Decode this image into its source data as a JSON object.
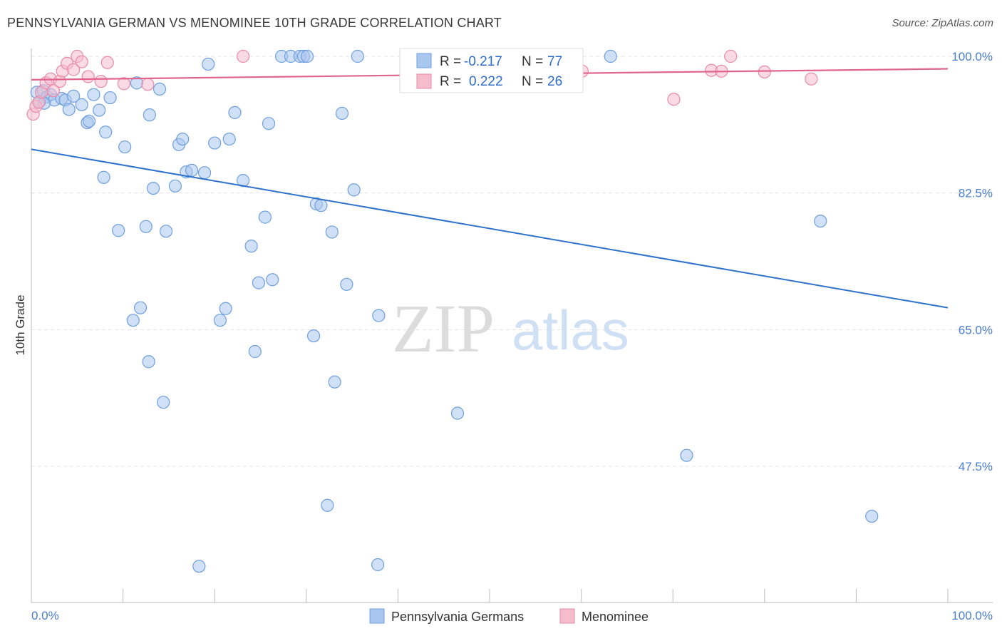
{
  "title": "PENNSYLVANIA GERMAN VS MENOMINEE 10TH GRADE CORRELATION CHART",
  "source": "Source: ZipAtlas.com",
  "watermark": {
    "part1": "ZIP",
    "part2": "atlas"
  },
  "colors": {
    "blue_fill": "#a9c7ee",
    "blue_stroke": "#6f9fdc",
    "blue_line": "#2f72cc",
    "pink_fill": "#f5bccd",
    "pink_stroke": "#e98aa8",
    "pink_line": "#e0668f",
    "grid": "#e3e3e3",
    "axis_label": "#4a7fd0"
  },
  "legend_box": {
    "rows": [
      {
        "r_label": "R =",
        "r_value": "-0.217",
        "n_label": "N =",
        "n_value": "77"
      },
      {
        "r_label": "R =",
        "r_value": "0.222",
        "n_label": "N =",
        "n_value": "26"
      }
    ]
  },
  "bottom_legend": [
    "Pennsylvania Germans",
    "Menominee"
  ],
  "chart_data": {
    "type": "scatter",
    "xlabel": "",
    "ylabel": "10th Grade",
    "xlim": [
      0,
      100
    ],
    "ylim": [
      35,
      101
    ],
    "x_tick_labels": [
      "0.0%",
      "100.0%"
    ],
    "y_tick_labels": [
      "100.0%",
      "82.5%",
      "65.0%",
      "47.5%"
    ],
    "y_ticks": [
      100,
      82.5,
      65,
      47.5
    ],
    "grid": "horizontal dashed",
    "series": [
      {
        "name": "Pennsylvania Germans",
        "points": [
          [
            0.6,
            95.4
          ],
          [
            0.9,
            94.2
          ],
          [
            1.3,
            95.6
          ],
          [
            1.7,
            94.8
          ],
          [
            2.1,
            95.1
          ],
          [
            2.5,
            94.4
          ],
          [
            3.3,
            94.6
          ],
          [
            3.7,
            94.4
          ],
          [
            4.1,
            93.2
          ],
          [
            4.6,
            94.9
          ],
          [
            5.5,
            93.8
          ],
          [
            6.1,
            91.5
          ],
          [
            6.3,
            91.7
          ],
          [
            6.8,
            95.1
          ],
          [
            7.4,
            93.1
          ],
          [
            7.9,
            84.5
          ],
          [
            8.1,
            90.3
          ],
          [
            8.6,
            94.7
          ],
          [
            9.5,
            77.7
          ],
          [
            10.2,
            88.4
          ],
          [
            11.1,
            66.2
          ],
          [
            11.5,
            96.6
          ],
          [
            11.9,
            67.8
          ],
          [
            12.5,
            78.2
          ],
          [
            12.8,
            60.9
          ],
          [
            12.9,
            92.5
          ],
          [
            13.3,
            83.1
          ],
          [
            14.0,
            95.8
          ],
          [
            14.4,
            55.7
          ],
          [
            14.7,
            77.6
          ],
          [
            15.7,
            83.4
          ],
          [
            16.1,
            88.7
          ],
          [
            16.5,
            89.4
          ],
          [
            16.9,
            85.2
          ],
          [
            17.5,
            85.4
          ],
          [
            18.3,
            34.7
          ],
          [
            18.9,
            85.1
          ],
          [
            19.3,
            99.0
          ],
          [
            20.0,
            88.9
          ],
          [
            20.6,
            66.2
          ],
          [
            21.2,
            67.7
          ],
          [
            21.6,
            89.4
          ],
          [
            22.2,
            92.8
          ],
          [
            23.1,
            84.1
          ],
          [
            24.0,
            75.7
          ],
          [
            24.4,
            62.2
          ],
          [
            24.8,
            71.0
          ],
          [
            25.5,
            79.4
          ],
          [
            25.9,
            91.4
          ],
          [
            26.3,
            71.4
          ],
          [
            27.3,
            100.0
          ],
          [
            28.3,
            100.0
          ],
          [
            29.3,
            100.0
          ],
          [
            29.7,
            100.0
          ],
          [
            30.1,
            100.0
          ],
          [
            30.8,
            64.2
          ],
          [
            31.1,
            81.1
          ],
          [
            31.6,
            80.9
          ],
          [
            32.3,
            42.5
          ],
          [
            32.8,
            77.5
          ],
          [
            33.1,
            58.3
          ],
          [
            33.9,
            92.7
          ],
          [
            34.4,
            70.8
          ],
          [
            35.2,
            82.9
          ],
          [
            35.6,
            100.0
          ],
          [
            37.8,
            34.9
          ],
          [
            37.9,
            66.8
          ],
          [
            44.1,
            100.0
          ],
          [
            46.5,
            54.3
          ],
          [
            49.1,
            100.0
          ],
          [
            55.2,
            100.0
          ],
          [
            54.7,
            100.0
          ],
          [
            63.2,
            100.0
          ],
          [
            71.5,
            48.9
          ],
          [
            86.1,
            78.9
          ],
          [
            91.7,
            41.1
          ],
          [
            1.4,
            94.0
          ]
        ]
      },
      {
        "name": "Menominee",
        "points": [
          [
            0.2,
            92.6
          ],
          [
            0.5,
            93.6
          ],
          [
            0.8,
            94.1
          ],
          [
            1.1,
            95.4
          ],
          [
            1.6,
            96.6
          ],
          [
            2.1,
            97.1
          ],
          [
            2.4,
            95.6
          ],
          [
            3.1,
            96.8
          ],
          [
            3.4,
            98.1
          ],
          [
            3.9,
            99.1
          ],
          [
            4.6,
            98.3
          ],
          [
            5.0,
            100.0
          ],
          [
            5.5,
            99.3
          ],
          [
            6.2,
            97.4
          ],
          [
            7.6,
            96.8
          ],
          [
            8.3,
            99.2
          ],
          [
            10.1,
            96.5
          ],
          [
            12.7,
            96.4
          ],
          [
            23.1,
            100.0
          ],
          [
            60.1,
            98.1
          ],
          [
            70.1,
            94.5
          ],
          [
            74.2,
            98.2
          ],
          [
            75.3,
            98.1
          ],
          [
            76.3,
            100.0
          ],
          [
            80.0,
            98.0
          ],
          [
            85.1,
            97.1
          ]
        ]
      }
    ],
    "trend_lines": [
      {
        "name": "Pennsylvania Germans",
        "x": [
          0,
          100
        ],
        "y": [
          88.1,
          67.8
        ]
      },
      {
        "name": "Menominee",
        "x": [
          0,
          100
        ],
        "y": [
          97.0,
          98.4
        ]
      }
    ]
  }
}
